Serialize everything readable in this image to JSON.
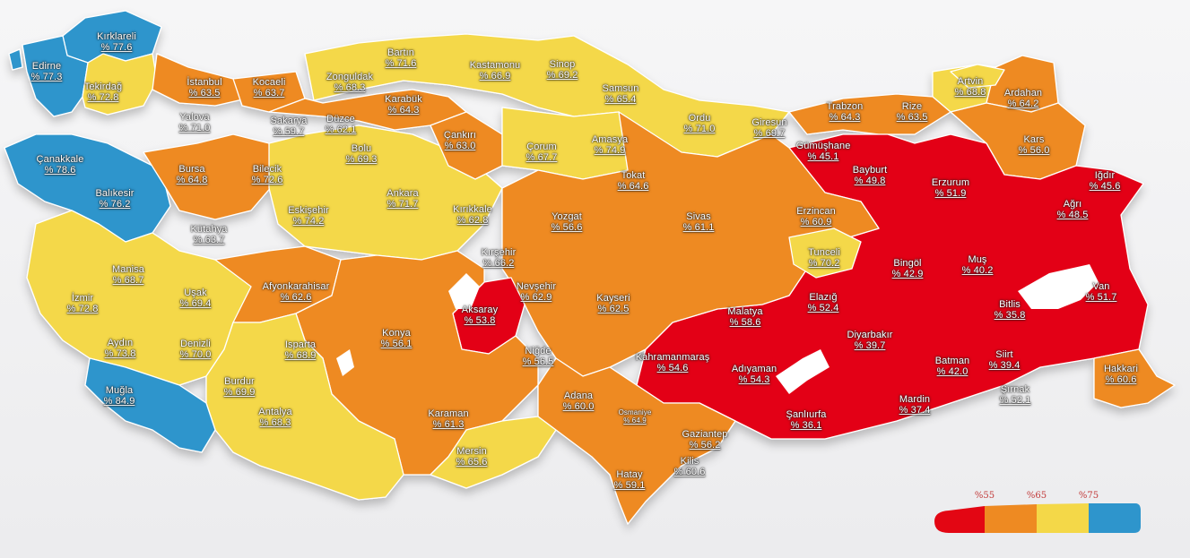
{
  "colors": {
    "red": "#e30613",
    "orange": "#ee8a22",
    "yellow": "#f4d848",
    "blue": "#2e95cc"
  },
  "legend": {
    "ticks": [
      "%55",
      "%65",
      "%75"
    ]
  },
  "provinces": [
    {
      "name": "Kırklareli",
      "value": "% 77.6",
      "band": "blue"
    },
    {
      "name": "Edirne",
      "value": "% 77.3",
      "band": "blue"
    },
    {
      "name": "Tekirdağ",
      "value": "% 72.8",
      "band": "yellow"
    },
    {
      "name": "İstanbul",
      "value": "% 63.5",
      "band": "orange"
    },
    {
      "name": "Kocaeli",
      "value": "% 63.7",
      "band": "orange"
    },
    {
      "name": "Bartın",
      "value": "% 71.6",
      "band": "yellow"
    },
    {
      "name": "Zonguldak",
      "value": "% 68.3",
      "band": "yellow"
    },
    {
      "name": "Kastamonu",
      "value": "% 66.9",
      "band": "yellow"
    },
    {
      "name": "Sinop",
      "value": "% 69.2",
      "band": "yellow"
    },
    {
      "name": "Samsun",
      "value": "% 65.4",
      "band": "yellow"
    },
    {
      "name": "Artvin",
      "value": "% 68.8",
      "band": "yellow"
    },
    {
      "name": "Ardahan",
      "value": "% 64.2",
      "band": "orange"
    },
    {
      "name": "Yalova",
      "value": "% 71.0",
      "band": "yellow"
    },
    {
      "name": "Sakarya",
      "value": "% 59.7",
      "band": "orange"
    },
    {
      "name": "Düzce",
      "value": "% 62.1",
      "band": "orange"
    },
    {
      "name": "Karabük",
      "value": "% 64.3",
      "band": "orange"
    },
    {
      "name": "Trabzon",
      "value": "% 64.3",
      "band": "orange"
    },
    {
      "name": "Rize",
      "value": "% 63.5",
      "band": "orange"
    },
    {
      "name": "Ordu",
      "value": "% 71.0",
      "band": "yellow"
    },
    {
      "name": "Giresun",
      "value": "% 69.7",
      "band": "yellow"
    },
    {
      "name": "Çanakkale",
      "value": "% 78.6",
      "band": "blue"
    },
    {
      "name": "Çankırı",
      "value": "% 63.0",
      "band": "orange"
    },
    {
      "name": "Çorum",
      "value": "% 67.7",
      "band": "yellow"
    },
    {
      "name": "Amasya",
      "value": "% 74.9",
      "band": "yellow"
    },
    {
      "name": "Gümüşhane",
      "value": "% 45.1",
      "band": "red"
    },
    {
      "name": "Kars",
      "value": "% 56.0",
      "band": "orange"
    },
    {
      "name": "Bursa",
      "value": "% 64.8",
      "band": "orange"
    },
    {
      "name": "Bilecik",
      "value": "% 72.6",
      "band": "yellow"
    },
    {
      "name": "Bolu",
      "value": "% 69.3",
      "band": "yellow"
    },
    {
      "name": "Tokat",
      "value": "% 64.6",
      "band": "orange"
    },
    {
      "name": "Bayburt",
      "value": "% 49.8",
      "band": "red"
    },
    {
      "name": "Erzurum",
      "value": "% 51.9",
      "band": "red"
    },
    {
      "name": "Iğdır",
      "value": "% 45.6",
      "band": "red"
    },
    {
      "name": "Balıkesir",
      "value": "% 76.2",
      "band": "blue"
    },
    {
      "name": "Ankara",
      "value": "% 71.7",
      "band": "yellow"
    },
    {
      "name": "Eskişehir",
      "value": "% 74.2",
      "band": "yellow"
    },
    {
      "name": "Kırıkkale",
      "value": "% 62.8",
      "band": "orange"
    },
    {
      "name": "Yozgat",
      "value": "% 56.6",
      "band": "orange"
    },
    {
      "name": "Sivas",
      "value": "% 61.1",
      "band": "orange"
    },
    {
      "name": "Erzincan",
      "value": "% 60.9",
      "band": "orange"
    },
    {
      "name": "Ağrı",
      "value": "% 48.5",
      "band": "red"
    },
    {
      "name": "Kütahya",
      "value": "% 63.7",
      "band": "orange"
    },
    {
      "name": "Kırşehir",
      "value": "% 66.2",
      "band": "yellow"
    },
    {
      "name": "Tunceli",
      "value": "% 70.2",
      "band": "yellow"
    },
    {
      "name": "Bingöl",
      "value": "% 42.9",
      "band": "red"
    },
    {
      "name": "Muş",
      "value": "% 40.2",
      "band": "red"
    },
    {
      "name": "Manisa",
      "value": "% 68.7",
      "band": "yellow"
    },
    {
      "name": "Afyonkarahisar",
      "value": "% 62.6",
      "band": "orange"
    },
    {
      "name": "Nevşehir",
      "value": "% 62.9",
      "band": "orange"
    },
    {
      "name": "Kayseri",
      "value": "% 62.5",
      "band": "orange"
    },
    {
      "name": "Elazığ",
      "value": "% 52.4",
      "band": "red"
    },
    {
      "name": "Van",
      "value": "% 51.7",
      "band": "red"
    },
    {
      "name": "İzmir",
      "value": "% 72.8",
      "band": "yellow"
    },
    {
      "name": "Uşak",
      "value": "% 69.4",
      "band": "yellow"
    },
    {
      "name": "Aksaray",
      "value": "% 53.8",
      "band": "red"
    },
    {
      "name": "Malatya",
      "value": "% 58.6",
      "band": "orange"
    },
    {
      "name": "Bitlis",
      "value": "% 35.8",
      "band": "red"
    },
    {
      "name": "Konya",
      "value": "% 56.1",
      "band": "orange"
    },
    {
      "name": "Diyarbakır",
      "value": "% 39.7",
      "band": "red"
    },
    {
      "name": "Aydın",
      "value": "% 73.8",
      "band": "yellow"
    },
    {
      "name": "Denizli",
      "value": "% 70.0",
      "band": "yellow"
    },
    {
      "name": "Isparta",
      "value": "% 68.9",
      "band": "yellow"
    },
    {
      "name": "Niğde",
      "value": "% 56.5",
      "band": "orange"
    },
    {
      "name": "Kahramanmaraş",
      "value": "% 54.6",
      "band": "red"
    },
    {
      "name": "Adıyaman",
      "value": "% 54.3",
      "band": "red"
    },
    {
      "name": "Siirt",
      "value": "% 39.4",
      "band": "red"
    },
    {
      "name": "Batman",
      "value": "% 42.0",
      "band": "red"
    },
    {
      "name": "Hakkari",
      "value": "% 60.6",
      "band": "orange"
    },
    {
      "name": "Muğla",
      "value": "% 84.9",
      "band": "blue"
    },
    {
      "name": "Burdur",
      "value": "% 69.9",
      "band": "yellow"
    },
    {
      "name": "Adana",
      "value": "% 60.0",
      "band": "orange"
    },
    {
      "name": "Mardin",
      "value": "% 37.4",
      "band": "red"
    },
    {
      "name": "Şırnak",
      "value": "% 52.1",
      "band": "red"
    },
    {
      "name": "Antalya",
      "value": "% 68.3",
      "band": "yellow"
    },
    {
      "name": "Karaman",
      "value": "% 61.3",
      "band": "orange"
    },
    {
      "name": "Osmaniye",
      "value": "% 64.9",
      "band": "orange"
    },
    {
      "name": "Gaziantep",
      "value": "% 56.2",
      "band": "orange"
    },
    {
      "name": "Şanlıurfa",
      "value": "% 36.1",
      "band": "red"
    },
    {
      "name": "Mersin",
      "value": "% 65.6",
      "band": "yellow"
    },
    {
      "name": "Kilis",
      "value": "% 60.6",
      "band": "orange"
    },
    {
      "name": "Hatay",
      "value": "% 59.1",
      "band": "orange"
    }
  ]
}
